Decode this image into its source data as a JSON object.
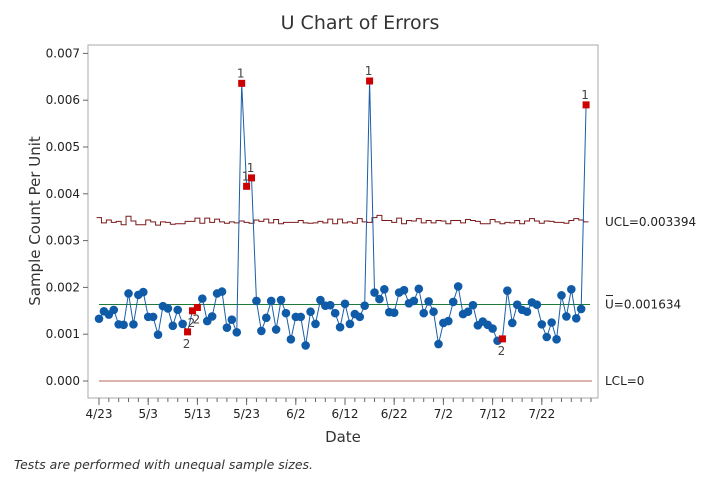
{
  "chart_data": {
    "type": "line",
    "title": "U Chart of Errors",
    "xlabel": "Date",
    "ylabel": "Sample Count Per Unit",
    "x_ticks": [
      "4/23",
      "5/3",
      "5/13",
      "5/23",
      "6/2",
      "6/12",
      "6/22",
      "7/2",
      "7/12",
      "7/22"
    ],
    "y_ticks": [
      "0.000",
      "0.001",
      "0.002",
      "0.003",
      "0.004",
      "0.005",
      "0.006",
      "0.007"
    ],
    "ylim": [
      -0.0002,
      0.0071
    ],
    "grid": false,
    "series": [
      {
        "values": [
          0.00133,
          0.00149,
          0.00142,
          0.00152,
          0.00121,
          0.0012,
          0.00187,
          0.00121,
          0.00184,
          0.0019,
          0.00137,
          0.00137,
          0.00099,
          0.0016,
          0.00155,
          0.00118,
          0.00152,
          0.00122,
          0.00105,
          0.0015,
          0.00157,
          0.00176,
          0.00128,
          0.00138,
          0.00187,
          0.00191,
          0.00114,
          0.00131,
          0.00104,
          0.00636,
          0.00416,
          0.00434,
          0.00171,
          0.00107,
          0.00135,
          0.00171,
          0.0011,
          0.00173,
          0.00145,
          0.00089,
          0.00137,
          0.00137,
          0.00076,
          0.00148,
          0.00122,
          0.00173,
          0.00161,
          0.00162,
          0.00145,
          0.00115,
          0.00165,
          0.00122,
          0.00143,
          0.00137,
          0.00161,
          0.00641,
          0.00189,
          0.00175,
          0.00196,
          0.00147,
          0.00146,
          0.00189,
          0.00194,
          0.00166,
          0.00171,
          0.00197,
          0.00145,
          0.0017,
          0.00148,
          0.00079,
          0.00124,
          0.00128,
          0.00169,
          0.00202,
          0.00143,
          0.00148,
          0.00162,
          0.00119,
          0.00127,
          0.0012,
          0.00112,
          0.00086,
          0.0009,
          0.00193,
          0.00124,
          0.00163,
          0.00152,
          0.00148,
          0.00168,
          0.00163,
          0.00121,
          0.00094,
          0.00125,
          0.00089,
          0.00183,
          0.00138,
          0.00196,
          0.00134,
          0.00154,
          0.0059
        ]
      }
    ],
    "out_of_control": [
      {
        "index": 18,
        "label": "2"
      },
      {
        "index": 19,
        "label": "2"
      },
      {
        "index": 20,
        "label": "2"
      },
      {
        "index": 29,
        "label": "1"
      },
      {
        "index": 30,
        "label": "1"
      },
      {
        "index": 31,
        "label": "1"
      },
      {
        "index": 55,
        "label": "1"
      },
      {
        "index": 82,
        "label": "2"
      },
      {
        "index": 99,
        "label": "1"
      }
    ],
    "center_line": {
      "value": 0.001634,
      "label": "U=0.001634"
    },
    "lcl": {
      "value": 0,
      "label": "LCL=0"
    },
    "ucl": {
      "label": "UCL=0.003394",
      "values": [
        0.00349,
        0.00338,
        0.00344,
        0.00339,
        0.00341,
        0.00334,
        0.00352,
        0.00342,
        0.00334,
        0.00334,
        0.00344,
        0.0034,
        0.00333,
        0.0034,
        0.00339,
        0.00335,
        0.00336,
        0.00336,
        0.00341,
        0.00341,
        0.00348,
        0.00337,
        0.00348,
        0.00339,
        0.00346,
        0.0034,
        0.00337,
        0.0034,
        0.00338,
        0.00342,
        0.00339,
        0.00337,
        0.00344,
        0.00341,
        0.00346,
        0.00338,
        0.00345,
        0.00336,
        0.00339,
        0.00339,
        0.00339,
        0.00343,
        0.00338,
        0.00337,
        0.00338,
        0.00341,
        0.00338,
        0.00346,
        0.00336,
        0.00346,
        0.00338,
        0.0034,
        0.00337,
        0.00347,
        0.0034,
        0.00339,
        0.00349,
        0.00354,
        0.00343,
        0.00343,
        0.00339,
        0.00348,
        0.00336,
        0.00343,
        0.00342,
        0.00347,
        0.00338,
        0.00343,
        0.00338,
        0.00343,
        0.00342,
        0.00336,
        0.00343,
        0.00343,
        0.00338,
        0.00345,
        0.00343,
        0.00341,
        0.00336,
        0.00336,
        0.00345,
        0.0034,
        0.00336,
        0.00339,
        0.00338,
        0.00343,
        0.00336,
        0.00342,
        0.00347,
        0.00342,
        0.00337,
        0.00342,
        0.00341,
        0.00339,
        0.00339,
        0.00337,
        0.00343,
        0.00347,
        0.00344,
        0.0034
      ]
    },
    "colors": {
      "line": "#1a5ea8",
      "point": "#0f5ba8",
      "out_of_control": "#cc0000",
      "center_line": "#1f7a3a",
      "ucl": "#7a1a1a",
      "lcl": "#b56a5a",
      "frame": "#a8a8a8"
    }
  },
  "footnote": "Tests are performed with unequal sample sizes."
}
